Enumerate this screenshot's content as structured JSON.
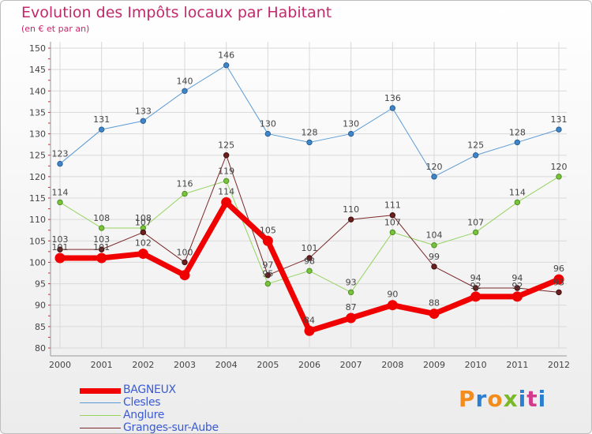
{
  "title": "Evolution des Impôts locaux par Habitant",
  "subtitle": "(en € et par an)",
  "logo": {
    "text": "Proxiti",
    "letters": [
      "P",
      "r",
      "o",
      "x",
      "i",
      "t",
      "i"
    ],
    "colors": [
      "#f28c1c",
      "#2a7fd1",
      "#f28c1c",
      "#79b928",
      "#2a7fd1",
      "#d33b8c",
      "#2a7fd1"
    ]
  },
  "chart_data": {
    "type": "line",
    "title": "Evolution des Impôts locaux par Habitant",
    "subtitle": "(en € et par an)",
    "xlabel": "",
    "ylabel": "",
    "x": [
      "2000",
      "2001",
      "2002",
      "2003",
      "2004",
      "2005",
      "2006",
      "2007",
      "2008",
      "2009",
      "2010",
      "2011",
      "2012"
    ],
    "ylim": [
      80,
      150
    ],
    "yticks": [
      80,
      85,
      90,
      95,
      100,
      105,
      110,
      115,
      120,
      125,
      130,
      135,
      140,
      145,
      150
    ],
    "grid": true,
    "legend_position": "bottom-left",
    "series": [
      {
        "name": "BAGNEUX",
        "color": "#f00000",
        "values": [
          101,
          101,
          102,
          97,
          114,
          105,
          84,
          87,
          90,
          88,
          92,
          92,
          96
        ],
        "labels": [
          "101",
          "101",
          "102",
          "",
          "114",
          "105",
          "84",
          "87",
          "90",
          "88",
          "92",
          "92",
          "96"
        ]
      },
      {
        "name": "Clesles",
        "color": "#5b9bd5",
        "values": [
          123,
          131,
          133,
          140,
          146,
          130,
          128,
          130,
          136,
          120,
          125,
          128,
          131
        ],
        "labels": [
          "123",
          "131",
          "133",
          "140",
          "146",
          "130",
          "128",
          "130",
          "136",
          "120",
          "125",
          "128",
          "131"
        ]
      },
      {
        "name": "Anglure",
        "color": "#96d35f",
        "values": [
          114,
          108,
          108,
          116,
          119,
          95,
          98,
          93,
          107,
          104,
          107,
          114,
          120
        ],
        "labels": [
          "114",
          "108",
          "108",
          "116",
          "119",
          "95",
          "98",
          "93",
          "107",
          "104",
          "107",
          "114",
          "120"
        ]
      },
      {
        "name": "Granges-sur-Aube",
        "color": "#7b2a2a",
        "values": [
          103,
          103,
          107,
          100,
          125,
          97,
          101,
          110,
          111,
          99,
          94,
          94,
          93
        ],
        "labels": [
          "103",
          "103",
          "107",
          "100",
          "125",
          "97",
          "101",
          "110",
          "111",
          "99",
          "94",
          "94",
          "93"
        ]
      }
    ]
  }
}
